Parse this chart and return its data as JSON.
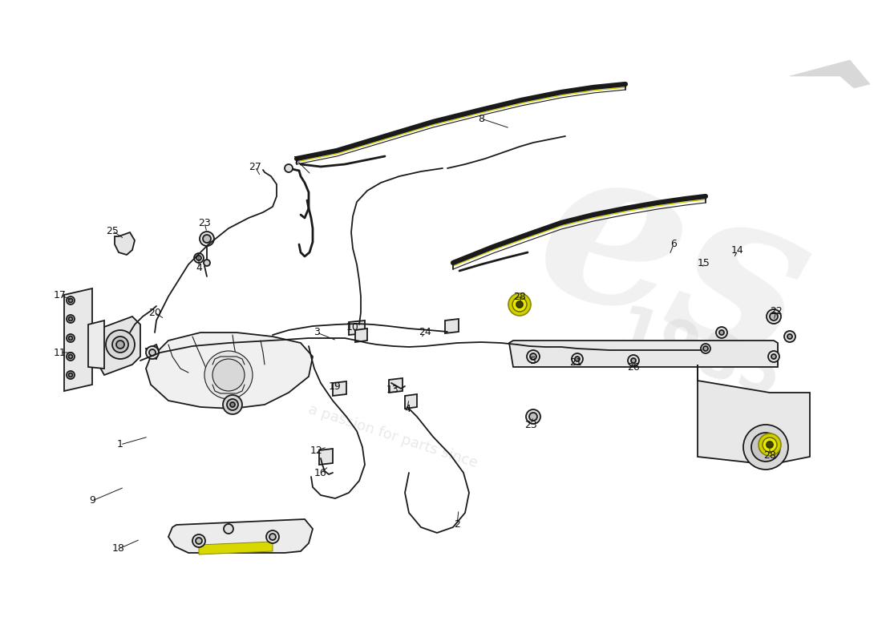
{
  "bg_color": "#ffffff",
  "dc": "#1a1a1a",
  "hc": "#cccc00",
  "wc": "#d8d8d8",
  "lw": 1.3,
  "lw2": 2.0,
  "lw3": 3.5,
  "labels": [
    [
      "1",
      150,
      555
    ],
    [
      "2",
      570,
      655
    ],
    [
      "3",
      395,
      415
    ],
    [
      "4",
      248,
      335
    ],
    [
      "4",
      508,
      510
    ],
    [
      "5",
      665,
      450
    ],
    [
      "6",
      840,
      305
    ],
    [
      "7",
      370,
      200
    ],
    [
      "8",
      600,
      148
    ],
    [
      "9",
      115,
      625
    ],
    [
      "10",
      440,
      408
    ],
    [
      "11",
      75,
      440
    ],
    [
      "12",
      395,
      562
    ],
    [
      "13",
      490,
      487
    ],
    [
      "14",
      920,
      313
    ],
    [
      "15",
      878,
      328
    ],
    [
      "16",
      400,
      590
    ],
    [
      "17",
      75,
      368
    ],
    [
      "18",
      148,
      685
    ],
    [
      "19",
      418,
      483
    ],
    [
      "20",
      193,
      390
    ],
    [
      "21",
      718,
      453
    ],
    [
      "22",
      968,
      388
    ],
    [
      "23",
      255,
      278
    ],
    [
      "23",
      662,
      530
    ],
    [
      "24",
      530,
      415
    ],
    [
      "25",
      140,
      288
    ],
    [
      "26",
      790,
      458
    ],
    [
      "27",
      318,
      208
    ],
    [
      "28",
      648,
      370
    ],
    [
      "28",
      960,
      568
    ]
  ],
  "callout_lines": [
    [
      "1",
      150,
      555,
      185,
      545
    ],
    [
      "2",
      570,
      655,
      572,
      636
    ],
    [
      "3",
      395,
      415,
      420,
      425
    ],
    [
      "4",
      248,
      335,
      248,
      318
    ],
    [
      "4",
      508,
      510,
      510,
      498
    ],
    [
      "5",
      665,
      450,
      668,
      445
    ],
    [
      "6",
      840,
      305,
      835,
      318
    ],
    [
      "7",
      370,
      200,
      388,
      218
    ],
    [
      "8",
      600,
      148,
      636,
      160
    ],
    [
      "9",
      115,
      625,
      155,
      608
    ],
    [
      "10",
      440,
      408,
      445,
      418
    ],
    [
      "11",
      75,
      440,
      93,
      440
    ],
    [
      "12",
      395,
      562,
      408,
      558
    ],
    [
      "13",
      490,
      487,
      496,
      480
    ],
    [
      "14",
      920,
      313,
      915,
      322
    ],
    [
      "15",
      878,
      328,
      876,
      335
    ],
    [
      "16",
      400,
      590,
      410,
      582
    ],
    [
      "17",
      75,
      368,
      90,
      375
    ],
    [
      "18",
      148,
      685,
      175,
      673
    ],
    [
      "19",
      418,
      483,
      422,
      478
    ],
    [
      "20",
      193,
      390,
      205,
      398
    ],
    [
      "21",
      718,
      453,
      720,
      450
    ],
    [
      "22",
      968,
      388,
      965,
      400
    ],
    [
      "23",
      255,
      278,
      258,
      290
    ],
    [
      "23",
      662,
      530,
      665,
      520
    ],
    [
      "24",
      530,
      415,
      525,
      422
    ],
    [
      "25",
      140,
      288,
      155,
      298
    ],
    [
      "26",
      790,
      458,
      792,
      450
    ],
    [
      "27",
      318,
      208,
      325,
      220
    ],
    [
      "28",
      648,
      370,
      650,
      378
    ],
    [
      "28",
      960,
      568,
      960,
      558
    ]
  ]
}
